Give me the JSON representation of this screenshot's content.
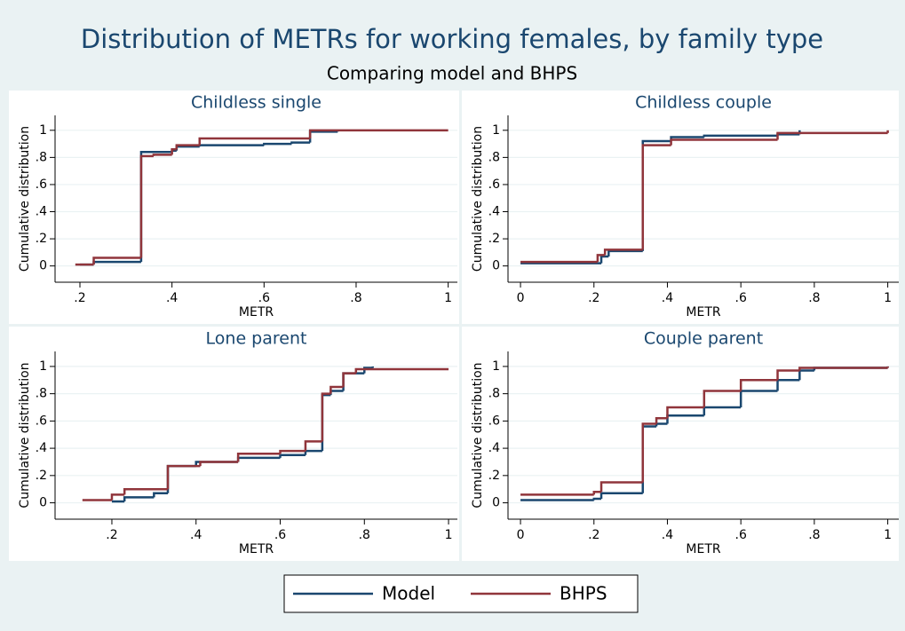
{
  "title": "Distribution of METRs for working females, by family type",
  "subtitle": "Comparing model and BHPS",
  "legend_position": "bottom",
  "chart_data": [
    {
      "type": "line",
      "step": true,
      "title": "Childless single",
      "xlabel": "METR",
      "ylabel": "Cumulative distribution",
      "xlim": [
        0.146,
        1.02
      ],
      "ylim": [
        -0.12,
        1.11
      ],
      "grid": true,
      "xticks": [
        {
          "value": 0.2,
          "label": ".2"
        },
        {
          "value": 0.4,
          "label": ".4"
        },
        {
          "value": 0.6,
          "label": ".6"
        },
        {
          "value": 0.8,
          "label": ".8"
        },
        1
      ],
      "yticks": [
        0,
        {
          "value": 0.2,
          "label": ".2"
        },
        {
          "value": 0.4,
          "label": ".4"
        },
        {
          "value": 0.6,
          "label": ".6"
        },
        {
          "value": 0.8,
          "label": ".8"
        },
        1
      ],
      "series": [
        {
          "name": "Model",
          "color": "#1a476f",
          "x": [
            0.2,
            0.23,
            0.333,
            0.4,
            0.41,
            0.46,
            0.6,
            0.66,
            0.7,
            0.76
          ],
          "values": [
            0.01,
            0.03,
            0.84,
            0.85,
            0.88,
            0.89,
            0.9,
            0.91,
            0.99,
            1.0
          ]
        },
        {
          "name": "BHPS",
          "color": "#90353b",
          "x": [
            0.19,
            0.23,
            0.333,
            0.36,
            0.4,
            0.41,
            0.46,
            0.7,
            1.0
          ],
          "values": [
            0.01,
            0.06,
            0.81,
            0.82,
            0.86,
            0.89,
            0.94,
            1.0,
            1.0
          ]
        }
      ]
    },
    {
      "type": "line",
      "step": true,
      "title": "Childless couple",
      "xlabel": "METR",
      "ylabel": "Cumulative distribution",
      "xlim": [
        -0.034,
        1.03
      ],
      "ylim": [
        -0.12,
        1.11
      ],
      "grid": true,
      "xticks": [
        0,
        {
          "value": 0.2,
          "label": ".2"
        },
        {
          "value": 0.4,
          "label": ".4"
        },
        {
          "value": 0.6,
          "label": ".6"
        },
        {
          "value": 0.8,
          "label": ".8"
        },
        1
      ],
      "yticks": [
        0,
        {
          "value": 0.2,
          "label": ".2"
        },
        {
          "value": 0.4,
          "label": ".4"
        },
        {
          "value": 0.6,
          "label": ".6"
        },
        {
          "value": 0.8,
          "label": ".8"
        },
        1
      ],
      "series": [
        {
          "name": "Model",
          "color": "#1a476f",
          "x": [
            0,
            0.22,
            0.24,
            0.333,
            0.41,
            0.5,
            0.7,
            0.76
          ],
          "values": [
            0.02,
            0.07,
            0.11,
            0.92,
            0.95,
            0.96,
            0.97,
            1.0
          ]
        },
        {
          "name": "BHPS",
          "color": "#90353b",
          "x": [
            0,
            0.21,
            0.23,
            0.333,
            0.41,
            0.7,
            1.0
          ],
          "values": [
            0.03,
            0.08,
            0.12,
            0.89,
            0.93,
            0.98,
            1.0
          ]
        }
      ]
    },
    {
      "type": "line",
      "step": true,
      "title": "Lone parent",
      "xlabel": "METR",
      "ylabel": "Cumulative distribution",
      "xlim": [
        0.065,
        1.021
      ],
      "ylim": [
        -0.12,
        1.11
      ],
      "grid": true,
      "xticks": [
        {
          "value": 0.2,
          "label": ".2"
        },
        {
          "value": 0.4,
          "label": ".4"
        },
        {
          "value": 0.6,
          "label": ".6"
        },
        {
          "value": 0.8,
          "label": ".8"
        },
        1
      ],
      "yticks": [
        0,
        {
          "value": 0.2,
          "label": ".2"
        },
        {
          "value": 0.4,
          "label": ".4"
        },
        {
          "value": 0.6,
          "label": ".6"
        },
        {
          "value": 0.8,
          "label": ".8"
        },
        1
      ],
      "series": [
        {
          "name": "Model",
          "color": "#1a476f",
          "x": [
            0.2,
            0.23,
            0.3,
            0.333,
            0.4,
            0.5,
            0.6,
            0.66,
            0.7,
            0.72,
            0.75,
            0.8,
            0.82
          ],
          "values": [
            0.01,
            0.04,
            0.07,
            0.27,
            0.3,
            0.33,
            0.35,
            0.38,
            0.79,
            0.82,
            0.95,
            0.99,
            1.0
          ]
        },
        {
          "name": "BHPS",
          "color": "#90353b",
          "x": [
            0.13,
            0.2,
            0.23,
            0.333,
            0.41,
            0.5,
            0.6,
            0.66,
            0.7,
            0.72,
            0.75,
            0.78,
            1.0
          ],
          "values": [
            0.02,
            0.06,
            0.1,
            0.27,
            0.3,
            0.36,
            0.38,
            0.45,
            0.8,
            0.85,
            0.95,
            0.98,
            0.98
          ]
        }
      ]
    },
    {
      "type": "line",
      "step": true,
      "title": "Couple parent",
      "xlabel": "METR",
      "ylabel": "Cumulative distribution",
      "xlim": [
        -0.034,
        1.03
      ],
      "ylim": [
        -0.12,
        1.11
      ],
      "grid": true,
      "xticks": [
        0,
        {
          "value": 0.2,
          "label": ".2"
        },
        {
          "value": 0.4,
          "label": ".4"
        },
        {
          "value": 0.6,
          "label": ".6"
        },
        {
          "value": 0.8,
          "label": ".8"
        },
        1
      ],
      "yticks": [
        0,
        {
          "value": 0.2,
          "label": ".2"
        },
        {
          "value": 0.4,
          "label": ".4"
        },
        {
          "value": 0.6,
          "label": ".6"
        },
        {
          "value": 0.8,
          "label": ".8"
        },
        1
      ],
      "series": [
        {
          "name": "Model",
          "color": "#1a476f",
          "x": [
            0,
            0.2,
            0.22,
            0.333,
            0.37,
            0.4,
            0.5,
            0.6,
            0.7,
            0.76,
            0.8,
            1.0
          ],
          "values": [
            0.02,
            0.03,
            0.07,
            0.56,
            0.58,
            0.64,
            0.7,
            0.82,
            0.9,
            0.97,
            0.99,
            1.0
          ]
        },
        {
          "name": "BHPS",
          "color": "#90353b",
          "x": [
            0,
            0.2,
            0.22,
            0.333,
            0.37,
            0.4,
            0.5,
            0.6,
            0.7,
            0.76,
            1.0
          ],
          "values": [
            0.06,
            0.08,
            0.15,
            0.58,
            0.62,
            0.7,
            0.82,
            0.9,
            0.97,
            0.99,
            1.0
          ]
        }
      ]
    }
  ]
}
